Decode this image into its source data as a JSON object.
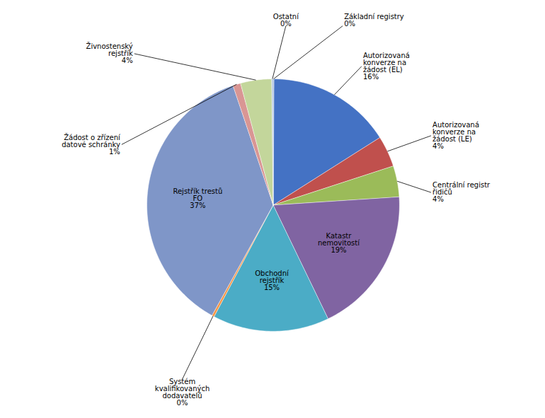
{
  "chart_data": {
    "type": "pie",
    "categories": [
      "Základní registry",
      "Autorizovaná\nkonverze na\nžádost (EL)",
      "Autorizovaná\nkonverze na\nžádost (LE)",
      "Centrální registr\nřidičů",
      "Katastr\nnemovitostí",
      "Obchodní\nrejstřík",
      "Systém\nkvalifikovaných\ndodavatelů",
      "Rejstřík trestů\nFO",
      "Žádost o zřízení\ndatové schránky",
      "Živnostenský\nrejstřík",
      "Ostatní"
    ],
    "values": [
      0.1,
      16,
      4,
      4,
      19,
      15,
      0.3,
      37,
      1,
      4,
      0.2
    ],
    "value_labels": [
      "0%",
      "16%",
      "4%",
      "4%",
      "19%",
      "15%",
      "0%",
      "37%",
      "1%",
      "4%",
      "0%"
    ],
    "colors": [
      "#4472C4",
      "#4472C4",
      "#C0504D",
      "#9BBB59",
      "#8064A2",
      "#4BACC6",
      "#F79646",
      "#7F96C8",
      "#D99694",
      "#C3D69B",
      "#B8CCE4"
    ],
    "data_labels": true,
    "tick_labels": false
  }
}
